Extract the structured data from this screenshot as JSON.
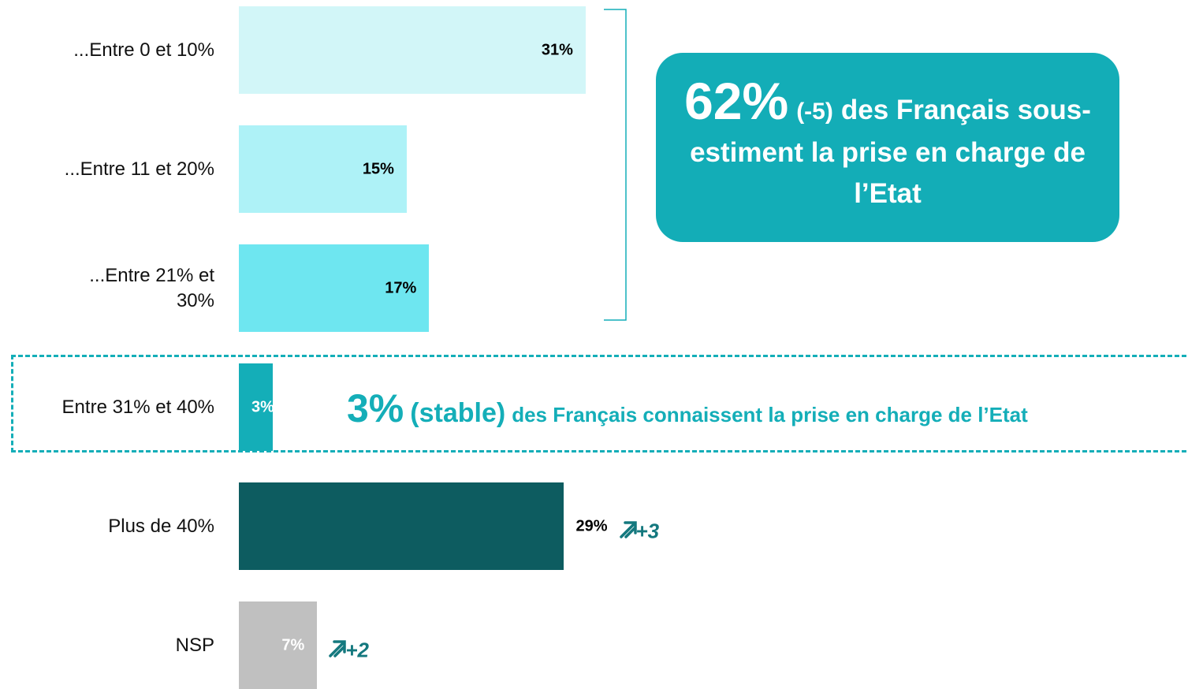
{
  "chart_data": {
    "type": "bar",
    "orientation": "horizontal",
    "categories": [
      "...Entre 0 et 10%",
      "...Entre 11 et 20%",
      "...Entre 21% et 30%",
      "Entre 31% et 40%",
      "Plus de 40%",
      "NSP"
    ],
    "values": [
      31,
      15,
      17,
      3,
      29,
      7
    ],
    "value_labels": [
      "31%",
      "15%",
      "17%",
      "3%",
      "29%",
      "7%"
    ],
    "colors": [
      "#d2f6f8",
      "#aef2f7",
      "#6ee6f0",
      "#14aeb8",
      "#0d5c60",
      "#c0c0c0"
    ],
    "changes": [
      null,
      null,
      null,
      null,
      "+3",
      "+2"
    ],
    "annotations": [
      {
        "figure": "62%",
        "change": "(-5)",
        "text": "des Français sous-estiment la prise en charge de l’Etat"
      },
      {
        "figure": "3%",
        "change": "(stable)",
        "text": "des Français connaissent la prise en charge de l’Etat"
      }
    ]
  }
}
